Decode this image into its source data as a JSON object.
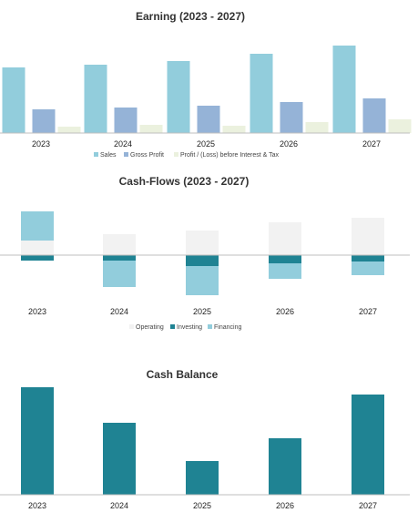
{
  "chart_data": [
    {
      "type": "bar",
      "title": "Earning (2023 - 2027)",
      "categories": [
        "2023",
        "2024",
        "2025",
        "2026",
        "2027"
      ],
      "series": [
        {
          "name": "Sales",
          "values": [
            72,
            75,
            79,
            87,
            96
          ],
          "color": "#92cddc"
        },
        {
          "name": "Gross Profit",
          "values": [
            26,
            28,
            30,
            34,
            38
          ],
          "color": "#95b3d7"
        },
        {
          "name": "Profit / (Loss) before Interest & Tax",
          "values": [
            7,
            9,
            8,
            12,
            15
          ],
          "color": "#ebf1de"
        }
      ],
      "ylim": [
        0,
        100
      ],
      "legend": "bottom",
      "grid": false
    },
    {
      "type": "bar",
      "stacked": true,
      "title": "Cash-Flows (2023 - 2027)",
      "categories": [
        "2023",
        "2024",
        "2025",
        "2026",
        "2027"
      ],
      "series": [
        {
          "name": "Operating",
          "values": [
            16,
            23,
            27,
            36,
            41
          ],
          "color": "#f2f2f2"
        },
        {
          "name": "Investing",
          "values": [
            -6,
            -6,
            -12,
            -9,
            -7
          ],
          "color": "#1f8393"
        },
        {
          "name": "Financing",
          "values": [
            32,
            -29,
            -32,
            -17,
            -15
          ],
          "color": "#92cddc"
        }
      ],
      "ylim": [
        -45,
        55
      ],
      "legend": "bottom",
      "grid": false
    },
    {
      "type": "bar",
      "title": "Cash Balance",
      "categories": [
        "2023",
        "2024",
        "2025",
        "2026",
        "2027"
      ],
      "series": [
        {
          "values": [
            118,
            79,
            37,
            62,
            110
          ],
          "color": "#1f8393"
        }
      ],
      "ylim": [
        0,
        120
      ],
      "grid": false
    }
  ]
}
